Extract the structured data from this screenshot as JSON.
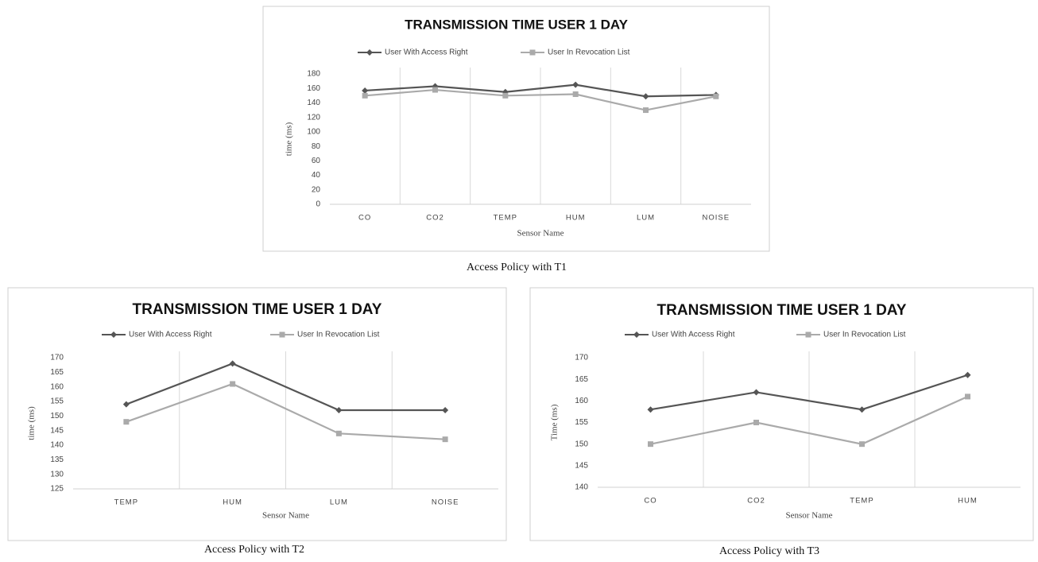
{
  "chart_data": [
    {
      "type": "line",
      "title": "TRANSMISSION TIME USER 1 DAY",
      "caption": "Access Policy with T1",
      "x_label": "Sensor Name",
      "y_label": "time (ms)",
      "categories": [
        "CO",
        "CO2",
        "TEMP",
        "HUM",
        "LUM",
        "NOISE"
      ],
      "series": [
        {
          "name": "User With Access Right",
          "color": "#555555",
          "marker": "diamond",
          "values": [
            157,
            163,
            155,
            165,
            149,
            151
          ]
        },
        {
          "name": "User In Revocation List",
          "color": "#aaaaaa",
          "marker": "square",
          "values": [
            150,
            158,
            150,
            152,
            130,
            149
          ]
        }
      ],
      "ylim": [
        0,
        180
      ],
      "yticks": [
        0,
        20,
        40,
        60,
        80,
        100,
        120,
        140,
        160,
        180
      ]
    },
    {
      "type": "line",
      "title": "TRANSMISSION TIME USER 1 DAY",
      "caption": "Access Policy with T2",
      "x_label": "Sensor Name",
      "y_label": "time (ms)",
      "categories": [
        "TEMP",
        "HUM",
        "LUM",
        "NOISE"
      ],
      "series": [
        {
          "name": "User With Access Right",
          "color": "#555555",
          "marker": "diamond",
          "values": [
            154,
            168,
            152,
            152
          ]
        },
        {
          "name": "User In Revocation List",
          "color": "#aaaaaa",
          "marker": "square",
          "values": [
            148,
            161,
            144,
            142
          ]
        }
      ],
      "ylim": [
        125,
        170
      ],
      "yticks": [
        125,
        130,
        135,
        140,
        145,
        150,
        155,
        160,
        165,
        170
      ]
    },
    {
      "type": "line",
      "title": "TRANSMISSION TIME USER 1 DAY",
      "caption": "Access Policy with T3",
      "x_label": "Sensor Name",
      "y_label": "Time (ms)",
      "categories": [
        "CO",
        "CO2",
        "TEMP",
        "HUM"
      ],
      "series": [
        {
          "name": "User With Access Right",
          "color": "#555555",
          "marker": "diamond",
          "values": [
            158,
            162,
            158,
            166
          ]
        },
        {
          "name": "User In Revocation List",
          "color": "#aaaaaa",
          "marker": "square",
          "values": [
            150,
            155,
            150,
            161
          ]
        }
      ],
      "ylim": [
        140,
        170
      ],
      "yticks": [
        140,
        145,
        150,
        155,
        160,
        165,
        170
      ]
    }
  ]
}
